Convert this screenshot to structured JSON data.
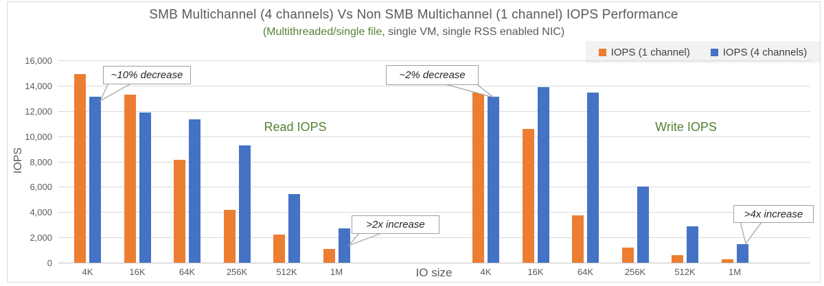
{
  "chart_data": {
    "type": "bar",
    "title": "SMB Multichannel (4 channels) Vs Non SMB Multichannel (1 channel) IOPS Performance",
    "subtitle": {
      "highlight": "(Multithreaded/single file",
      "rest": ", single VM, single RSS enabled NIC)"
    },
    "ylabel": "IOPS",
    "xlabel": "IO size",
    "ylim": [
      0,
      16000
    ],
    "ytick_step": 2000,
    "ytick_labels": [
      "0",
      "2,000",
      "4,000",
      "6,000",
      "8,000",
      "10,000",
      "12,000",
      "14,000",
      "16,000"
    ],
    "grid": true,
    "legend_position": "top-right",
    "legend": [
      {
        "name": "IOPS (1 channel)",
        "color": "#ED7D31"
      },
      {
        "name": "IOPS (4 channels)",
        "color": "#4472C4"
      }
    ],
    "categories": [
      "4K",
      "16K",
      "64K",
      "256K",
      "512K",
      "1M"
    ],
    "groups": [
      {
        "label": "Read IOPS",
        "series": [
          {
            "name": "IOPS (1 channel)",
            "color": "#ED7D31",
            "values": [
              14900,
              13300,
              8150,
              4200,
              2200,
              1100
            ]
          },
          {
            "name": "IOPS (4 channels)",
            "color": "#4472C4",
            "values": [
              13150,
              11900,
              11350,
              9300,
              5450,
              2700
            ]
          }
        ]
      },
      {
        "label": "Write IOPS",
        "series": [
          {
            "name": "IOPS (1 channel)",
            "color": "#ED7D31",
            "values": [
              13450,
              10550,
              3750,
              1200,
              600,
              250
            ]
          },
          {
            "name": "IOPS (4 channels)",
            "color": "#4472C4",
            "values": [
              13150,
              13900,
              13450,
              6000,
              2900,
              1450
            ]
          }
        ]
      }
    ],
    "annotations": [
      {
        "text": "~10% decrease",
        "target": "Read 4K (4 channels)"
      },
      {
        "text": "~2% decrease",
        "target": "Write 4K (4 channels)"
      },
      {
        "text": ">2x increase",
        "target": "Read 1M (4 channels)"
      },
      {
        "text": ">4x increase",
        "target": "Write 1M (4 channels)"
      }
    ],
    "colors": {
      "series_1_channel": "#ED7D31",
      "series_4_channels": "#4472C4",
      "title_text": "#595959",
      "highlight_text": "#548235",
      "gridline": "#D9D9D9",
      "legend_background": "#F2F2F2"
    }
  }
}
